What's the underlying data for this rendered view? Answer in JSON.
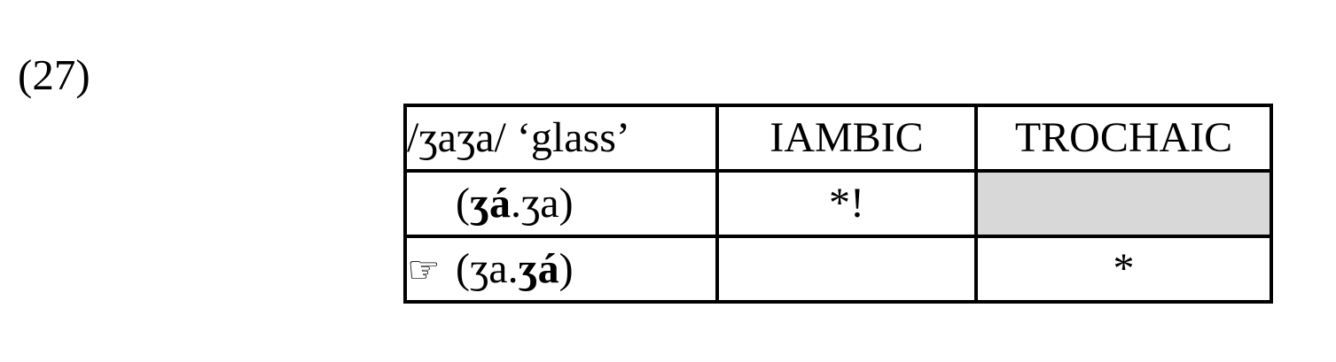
{
  "figure_number": "(27)",
  "tableau": {
    "input_header": "/ʒaʒa/ ‘glass’",
    "constraints": [
      "IAMBIC",
      "TROCHAIC"
    ],
    "rows": [
      {
        "pointer": "",
        "candidate": {
          "pre": "(",
          "stressed": "ʒá",
          "post": ".ʒa)"
        },
        "violations": {
          "iambic": "*!",
          "trochaic": ""
        },
        "shaded_column": "trochaic"
      },
      {
        "pointer": "☞",
        "candidate": {
          "pre": "(ʒa.",
          "stressed": "ʒá",
          "post": ")"
        },
        "violations": {
          "iambic": "",
          "trochaic": "*"
        },
        "shaded_column": ""
      }
    ],
    "colors": {
      "border": "#000000",
      "shading": "#d8d8d8",
      "text": "#000000",
      "background": "#ffffff"
    }
  }
}
